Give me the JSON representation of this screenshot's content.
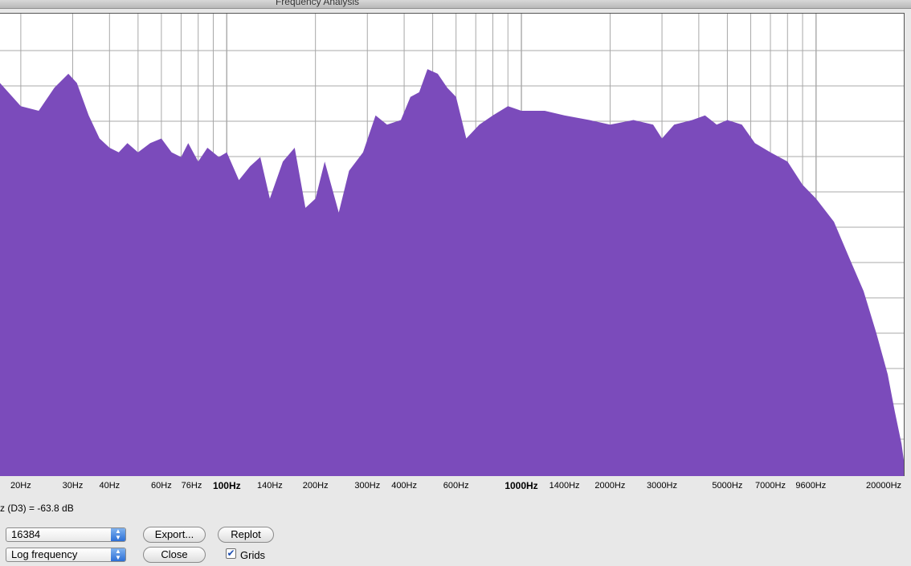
{
  "window": {
    "title": "Frequency Analysis"
  },
  "readout": "z (D3) = -63.8 dB",
  "controls": {
    "size_value": "16384",
    "axis_value": "Log frequency",
    "export_label": "Export...",
    "replot_label": "Replot",
    "close_label": "Close",
    "grids_label": "Grids",
    "grids_checked": true,
    "grids_mark": "✔"
  },
  "colors": {
    "spectrum_fill": "#7b4bbb",
    "grid": "#a8a8a8",
    "background": "#ffffff"
  },
  "chart_data": {
    "type": "area",
    "title": "",
    "xlabel": "",
    "ylabel": "",
    "x_scale": "log",
    "xlim": [
      17,
      21000
    ],
    "grid": true,
    "tick_labels": [
      {
        "hz": 20,
        "label": "20Hz"
      },
      {
        "hz": 30,
        "label": "30Hz"
      },
      {
        "hz": 40,
        "label": "40Hz"
      },
      {
        "hz": 60,
        "label": "60Hz"
      },
      {
        "hz": 76,
        "label": "76Hz"
      },
      {
        "hz": 100,
        "label": "100Hz",
        "major": true
      },
      {
        "hz": 140,
        "label": "140Hz"
      },
      {
        "hz": 200,
        "label": "200Hz"
      },
      {
        "hz": 300,
        "label": "300Hz"
      },
      {
        "hz": 400,
        "label": "400Hz"
      },
      {
        "hz": 600,
        "label": "600Hz"
      },
      {
        "hz": 1000,
        "label": "1000Hz",
        "major": true
      },
      {
        "hz": 1400,
        "label": "1400Hz"
      },
      {
        "hz": 2000,
        "label": "2000Hz"
      },
      {
        "hz": 3000,
        "label": "3000Hz"
      },
      {
        "hz": 5000,
        "label": "5000Hz"
      },
      {
        "hz": 7000,
        "label": "7000Hz"
      },
      {
        "hz": 9600,
        "label": "9600Hz"
      },
      {
        "hz": 20000,
        "label": "20000Hz"
      }
    ],
    "series": [
      {
        "values": [
          [
            17,
            0.85
          ],
          [
            20,
            0.8
          ],
          [
            23,
            0.79
          ],
          [
            26,
            0.84
          ],
          [
            29,
            0.87
          ],
          [
            31,
            0.85
          ],
          [
            34,
            0.78
          ],
          [
            37,
            0.73
          ],
          [
            40,
            0.71
          ],
          [
            43,
            0.7
          ],
          [
            46,
            0.72
          ],
          [
            50,
            0.7
          ],
          [
            55,
            0.72
          ],
          [
            60,
            0.73
          ],
          [
            65,
            0.7
          ],
          [
            70,
            0.69
          ],
          [
            74,
            0.72
          ],
          [
            80,
            0.68
          ],
          [
            86,
            0.71
          ],
          [
            94,
            0.69
          ],
          [
            100,
            0.7
          ],
          [
            110,
            0.64
          ],
          [
            120,
            0.67
          ],
          [
            130,
            0.69
          ],
          [
            140,
            0.6
          ],
          [
            155,
            0.68
          ],
          [
            170,
            0.71
          ],
          [
            185,
            0.58
          ],
          [
            200,
            0.6
          ],
          [
            215,
            0.68
          ],
          [
            240,
            0.57
          ],
          [
            260,
            0.66
          ],
          [
            290,
            0.7
          ],
          [
            320,
            0.78
          ],
          [
            350,
            0.76
          ],
          [
            390,
            0.77
          ],
          [
            420,
            0.82
          ],
          [
            450,
            0.83
          ],
          [
            480,
            0.88
          ],
          [
            520,
            0.87
          ],
          [
            560,
            0.84
          ],
          [
            600,
            0.82
          ],
          [
            650,
            0.73
          ],
          [
            720,
            0.76
          ],
          [
            800,
            0.78
          ],
          [
            900,
            0.8
          ],
          [
            1000,
            0.79
          ],
          [
            1200,
            0.79
          ],
          [
            1400,
            0.78
          ],
          [
            1700,
            0.77
          ],
          [
            2000,
            0.76
          ],
          [
            2400,
            0.77
          ],
          [
            2800,
            0.76
          ],
          [
            3000,
            0.73
          ],
          [
            3300,
            0.76
          ],
          [
            3800,
            0.77
          ],
          [
            4200,
            0.78
          ],
          [
            4600,
            0.76
          ],
          [
            5000,
            0.77
          ],
          [
            5600,
            0.76
          ],
          [
            6200,
            0.72
          ],
          [
            7000,
            0.7
          ],
          [
            8000,
            0.68
          ],
          [
            9000,
            0.63
          ],
          [
            10000,
            0.6
          ],
          [
            11500,
            0.55
          ],
          [
            13000,
            0.47
          ],
          [
            14500,
            0.4
          ],
          [
            16000,
            0.31
          ],
          [
            17500,
            0.22
          ],
          [
            18500,
            0.14
          ],
          [
            19500,
            0.07
          ],
          [
            20200,
            0.0
          ]
        ]
      }
    ]
  }
}
